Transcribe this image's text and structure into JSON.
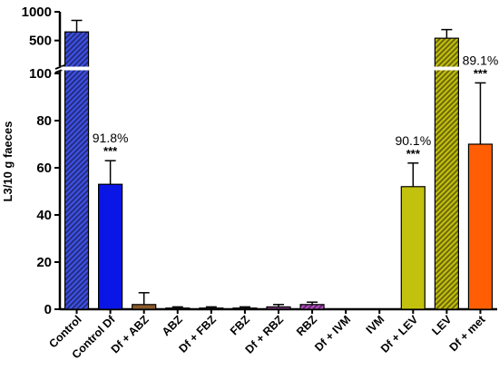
{
  "chart_data": {
    "type": "bar",
    "ylabel": "L3/10 g faeces",
    "y_axis": {
      "break": true,
      "lower_range": [
        0,
        100
      ],
      "upper_range": [
        100,
        1000
      ],
      "lower_ticks": [
        "0",
        "20",
        "40",
        "60",
        "80",
        "100"
      ],
      "upper_ticks": [
        "500",
        "1000"
      ]
    },
    "categories": [
      "Control",
      "Control Df",
      "Df + ABZ",
      "ABZ",
      "Df + FBZ",
      "FBZ",
      "Df + RBZ",
      "RBZ",
      "Df + IVM",
      "IVM",
      "Df + LEV",
      "LEV",
      "Df + met"
    ],
    "values": [
      650,
      53,
      2,
      0.5,
      0.5,
      0.5,
      1,
      2,
      0,
      0,
      52,
      540,
      70
    ],
    "error_upper": [
      850,
      63,
      7,
      1,
      1,
      1,
      2,
      3,
      0,
      0,
      62,
      690,
      96
    ],
    "bar_colors": [
      "#3f52e8",
      "#0a16e6",
      "#8a5a2b",
      "#3b2a1c",
      "#3c2418",
      "#6e2f38",
      "#7a3478",
      "#b84ec4",
      "#ffffff",
      "#ffffff",
      "#c2c20e",
      "#c4c00e",
      "#ff5e05"
    ],
    "hatched": [
      true,
      false,
      false,
      true,
      false,
      true,
      false,
      true,
      false,
      true,
      false,
      true,
      false
    ],
    "annotations": [
      {
        "category": "Control Df",
        "percent": "91.8%",
        "significance": "***"
      },
      {
        "category": "Df + LEV",
        "percent": "90.1%",
        "significance": "***"
      },
      {
        "category": "Df + met",
        "percent": "89.1%",
        "significance": "***"
      }
    ]
  }
}
